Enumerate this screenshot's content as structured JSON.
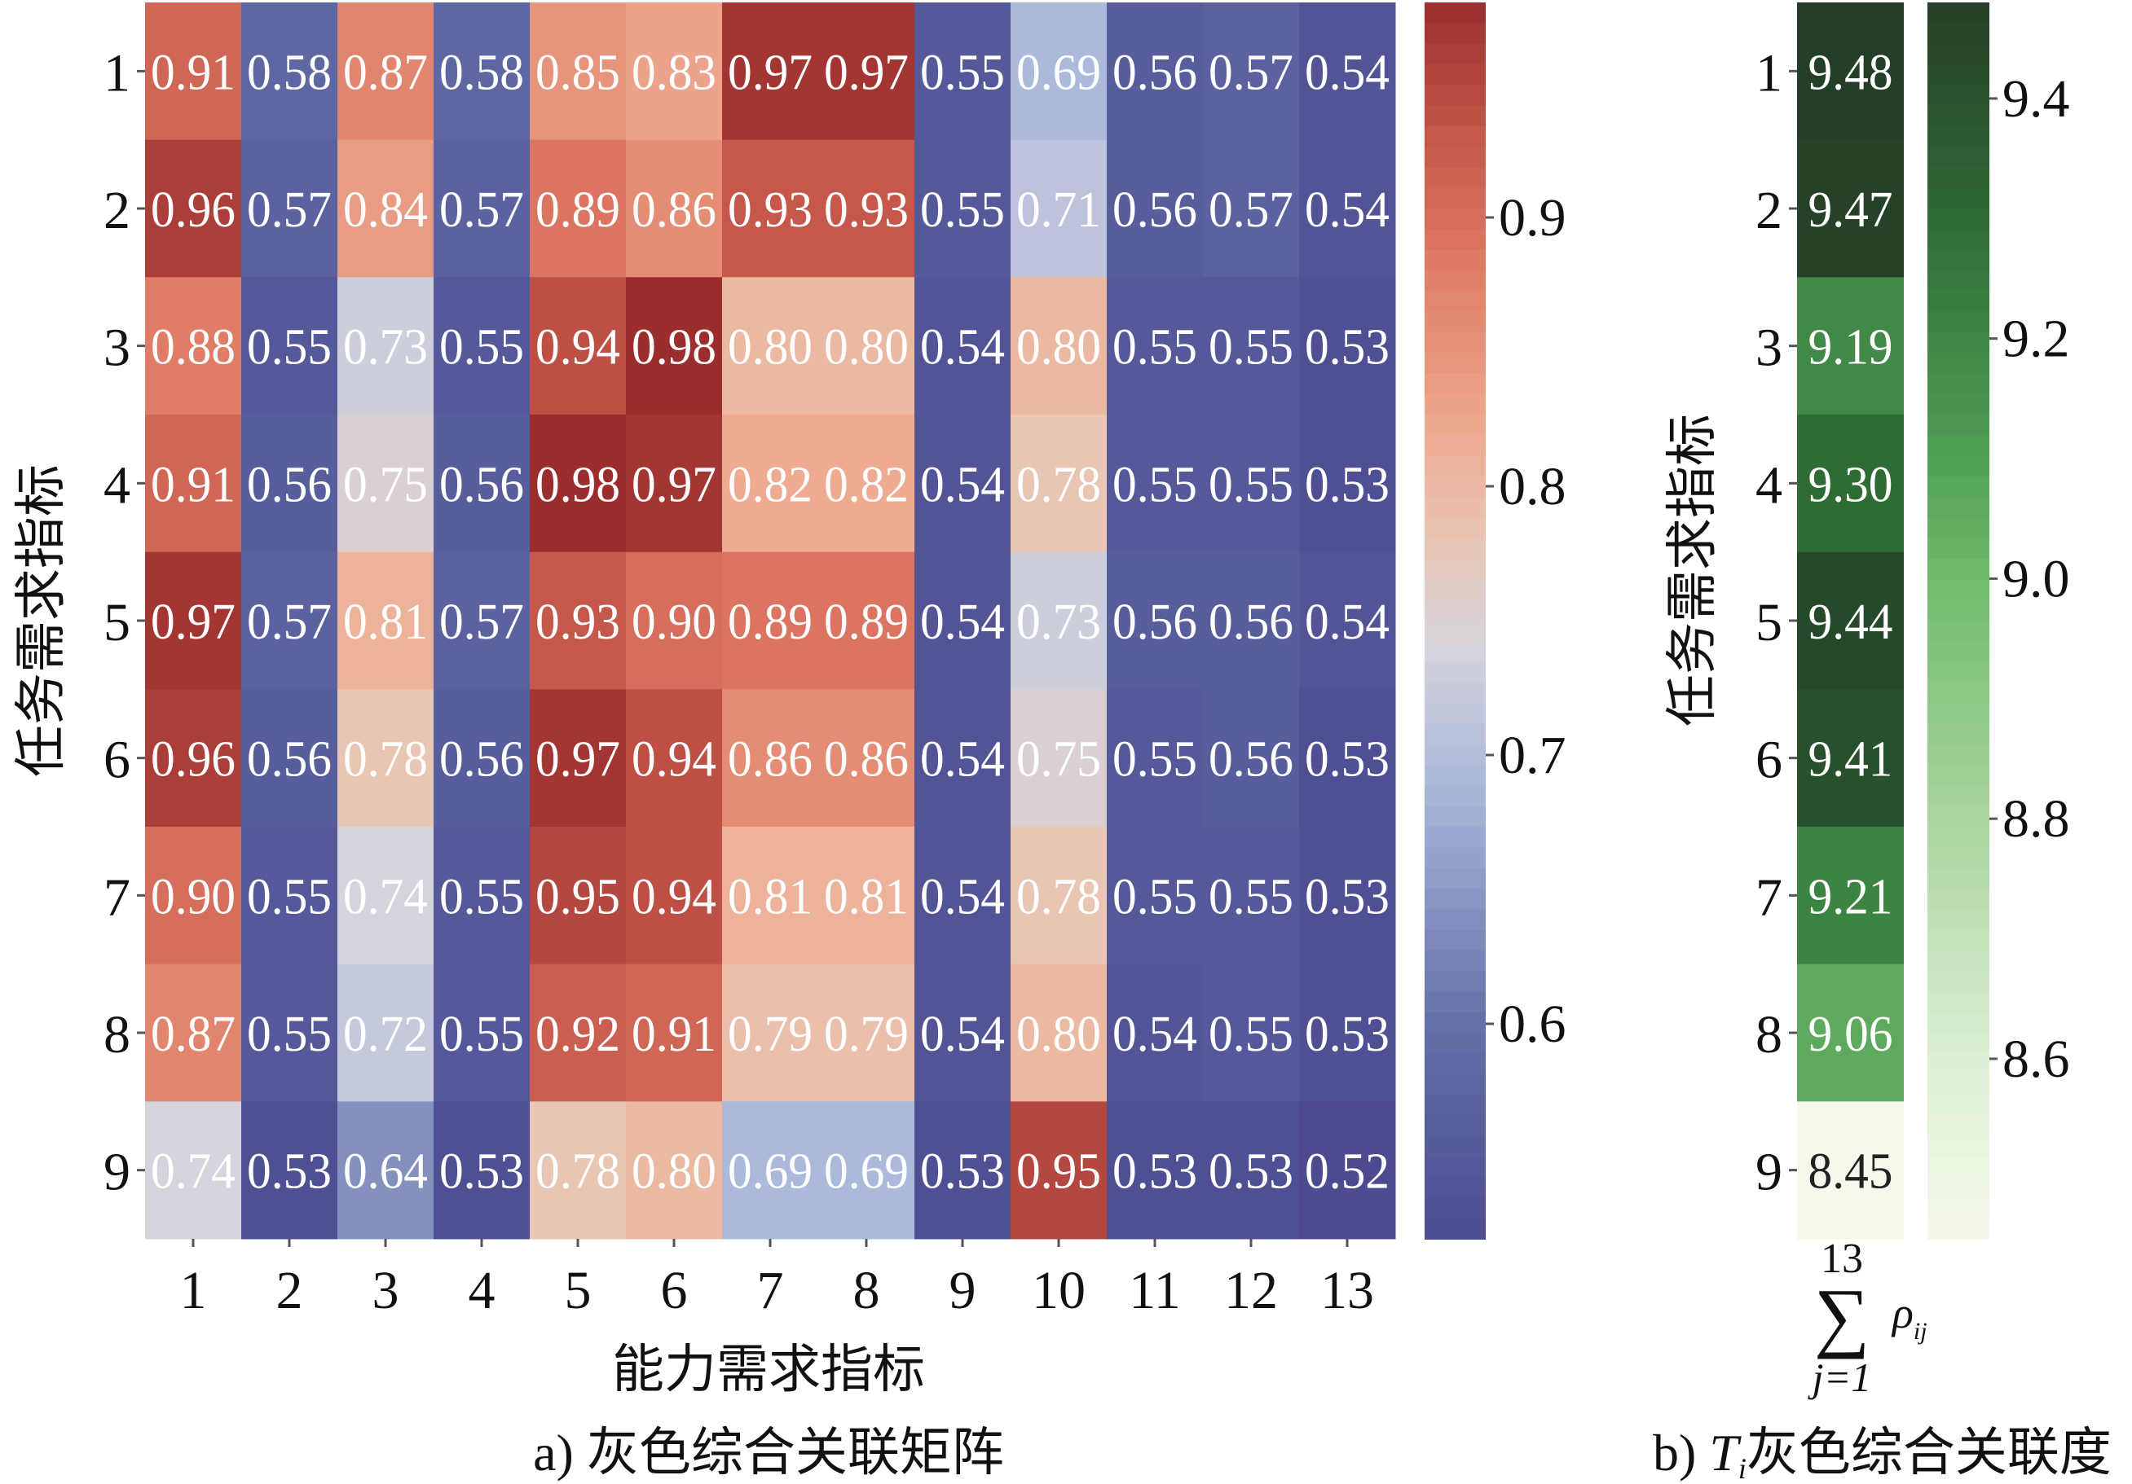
{
  "chart_data": [
    {
      "type": "heatmap",
      "title": "a) 灰色综合关联矩阵",
      "xlabel": "能力需求指标",
      "ylabel": "任务需求指标",
      "x_categories": [
        "1",
        "2",
        "3",
        "4",
        "5",
        "6",
        "7",
        "8",
        "9",
        "10",
        "11",
        "12",
        "13"
      ],
      "y_categories": [
        "1",
        "2",
        "3",
        "4",
        "5",
        "6",
        "7",
        "8",
        "9"
      ],
      "values": [
        [
          0.91,
          0.58,
          0.87,
          0.58,
          0.85,
          0.83,
          0.97,
          0.97,
          0.55,
          0.69,
          0.56,
          0.57,
          0.54
        ],
        [
          0.96,
          0.57,
          0.84,
          0.57,
          0.89,
          0.86,
          0.93,
          0.93,
          0.55,
          0.71,
          0.56,
          0.57,
          0.54
        ],
        [
          0.88,
          0.55,
          0.73,
          0.55,
          0.94,
          0.98,
          0.8,
          0.8,
          0.54,
          0.8,
          0.55,
          0.55,
          0.53
        ],
        [
          0.91,
          0.56,
          0.75,
          0.56,
          0.98,
          0.97,
          0.82,
          0.82,
          0.54,
          0.78,
          0.55,
          0.55,
          0.53
        ],
        [
          0.97,
          0.57,
          0.81,
          0.57,
          0.93,
          0.9,
          0.89,
          0.89,
          0.54,
          0.73,
          0.56,
          0.56,
          0.54
        ],
        [
          0.96,
          0.56,
          0.78,
          0.56,
          0.97,
          0.94,
          0.86,
          0.86,
          0.54,
          0.75,
          0.55,
          0.56,
          0.53
        ],
        [
          0.9,
          0.55,
          0.74,
          0.55,
          0.95,
          0.94,
          0.81,
          0.81,
          0.54,
          0.78,
          0.55,
          0.55,
          0.53
        ],
        [
          0.87,
          0.55,
          0.72,
          0.55,
          0.92,
          0.91,
          0.79,
          0.79,
          0.54,
          0.8,
          0.54,
          0.55,
          0.53
        ],
        [
          0.74,
          0.53,
          0.64,
          0.53,
          0.78,
          0.8,
          0.69,
          0.69,
          0.53,
          0.95,
          0.53,
          0.53,
          0.52
        ]
      ],
      "colorbar": {
        "range": [
          0.52,
          0.98
        ],
        "ticks": [
          "0.6",
          "0.7",
          "0.8",
          "0.9"
        ]
      },
      "colormap": [
        [
          0.52,
          "#4c4b90"
        ],
        [
          0.6,
          "#6470a8"
        ],
        [
          0.69,
          "#abb9da"
        ],
        [
          0.74,
          "#d5d3dc"
        ],
        [
          0.78,
          "#e8c6b3"
        ],
        [
          0.82,
          "#eeab92"
        ],
        [
          0.88,
          "#e07d67"
        ],
        [
          0.93,
          "#c5574b"
        ],
        [
          0.98,
          "#9b2e2d"
        ]
      ]
    },
    {
      "type": "heatmap",
      "title_prefix": "b) ",
      "title_var": "T",
      "title_sub": "i",
      "title_suffix": "灰色综合关联度",
      "ylabel": "任务需求指标",
      "xlabel_sum_top": "13",
      "xlabel_sum_bottom": "j=1",
      "xlabel_term": "ρ",
      "xlabel_term_sub": "ij",
      "y_categories": [
        "1",
        "2",
        "3",
        "4",
        "5",
        "6",
        "7",
        "8",
        "9"
      ],
      "values": [
        9.48,
        9.47,
        9.19,
        9.3,
        9.44,
        9.41,
        9.21,
        9.06,
        8.45
      ],
      "colorbar": {
        "range": [
          8.45,
          9.48
        ],
        "ticks": [
          "8.6",
          "8.8",
          "9.0",
          "9.2",
          "9.4"
        ]
      },
      "colormap": [
        [
          8.45,
          "#f4f9ec"
        ],
        [
          8.6,
          "#dcefd4"
        ],
        [
          8.8,
          "#a9d69d"
        ],
        [
          9.0,
          "#6fbb6c"
        ],
        [
          9.1,
          "#519f55"
        ],
        [
          9.2,
          "#3e8744"
        ],
        [
          9.3,
          "#2f6b35"
        ],
        [
          9.48,
          "#243f27"
        ]
      ]
    }
  ]
}
